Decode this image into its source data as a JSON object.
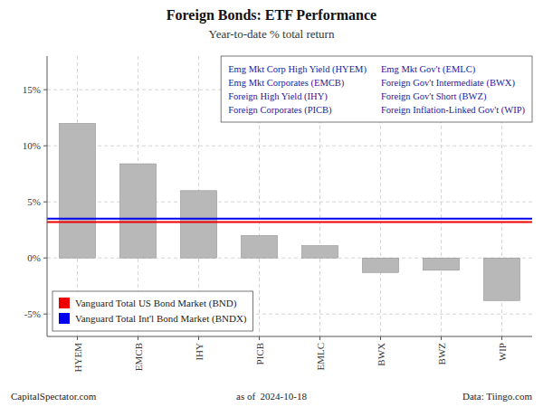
{
  "chart_data": {
    "type": "bar",
    "title": "Foreign Bonds: ETF Performance",
    "subtitle": "Year-to-date % total return",
    "categories": [
      "HYEM",
      "EMCB",
      "IHY",
      "PICB",
      "EMLC",
      "BWX",
      "BWZ",
      "WIP"
    ],
    "values": [
      12.0,
      8.4,
      6.0,
      2.0,
      1.1,
      -1.3,
      -1.1,
      -3.8
    ],
    "color": "#b8b8b8",
    "ylim": [
      -7,
      18
    ],
    "yticks": [
      {
        "value": -5,
        "label": "-5%"
      },
      {
        "value": 0,
        "label": "0%"
      },
      {
        "value": 5,
        "label": "5%"
      },
      {
        "value": 10,
        "label": "10%"
      },
      {
        "value": 15,
        "label": "15%"
      }
    ],
    "grid": true,
    "legend": "lower left",
    "reference_lines": [
      {
        "name": "Vanguard Total US Bond Market (BND)",
        "value": 3.2,
        "color": "#ee0000"
      },
      {
        "name": "Vanguard Total Int'l Bond Market (BNDX)",
        "value": 3.5,
        "color": "#0000ee"
      }
    ],
    "annotations": [
      [
        "Emg Mkt Corp High Yield (HYEM)",
        "Emg Mkt Corporates (EMCB)",
        "Foreign High Yield (IHY)",
        "Foreign Corporates (PICB)"
      ],
      [
        "Emg Mkt Gov't (EMLC)",
        "Foreign Gov't Intermediate (BWX)",
        "Foreign Gov't Short (BWZ)",
        "Foreign Inflation-Linked Gov't (WIP)"
      ]
    ],
    "footer": [
      "CapitalSpectator.com",
      "as of  2024-10-18",
      "Data: Tiingo.com"
    ]
  }
}
